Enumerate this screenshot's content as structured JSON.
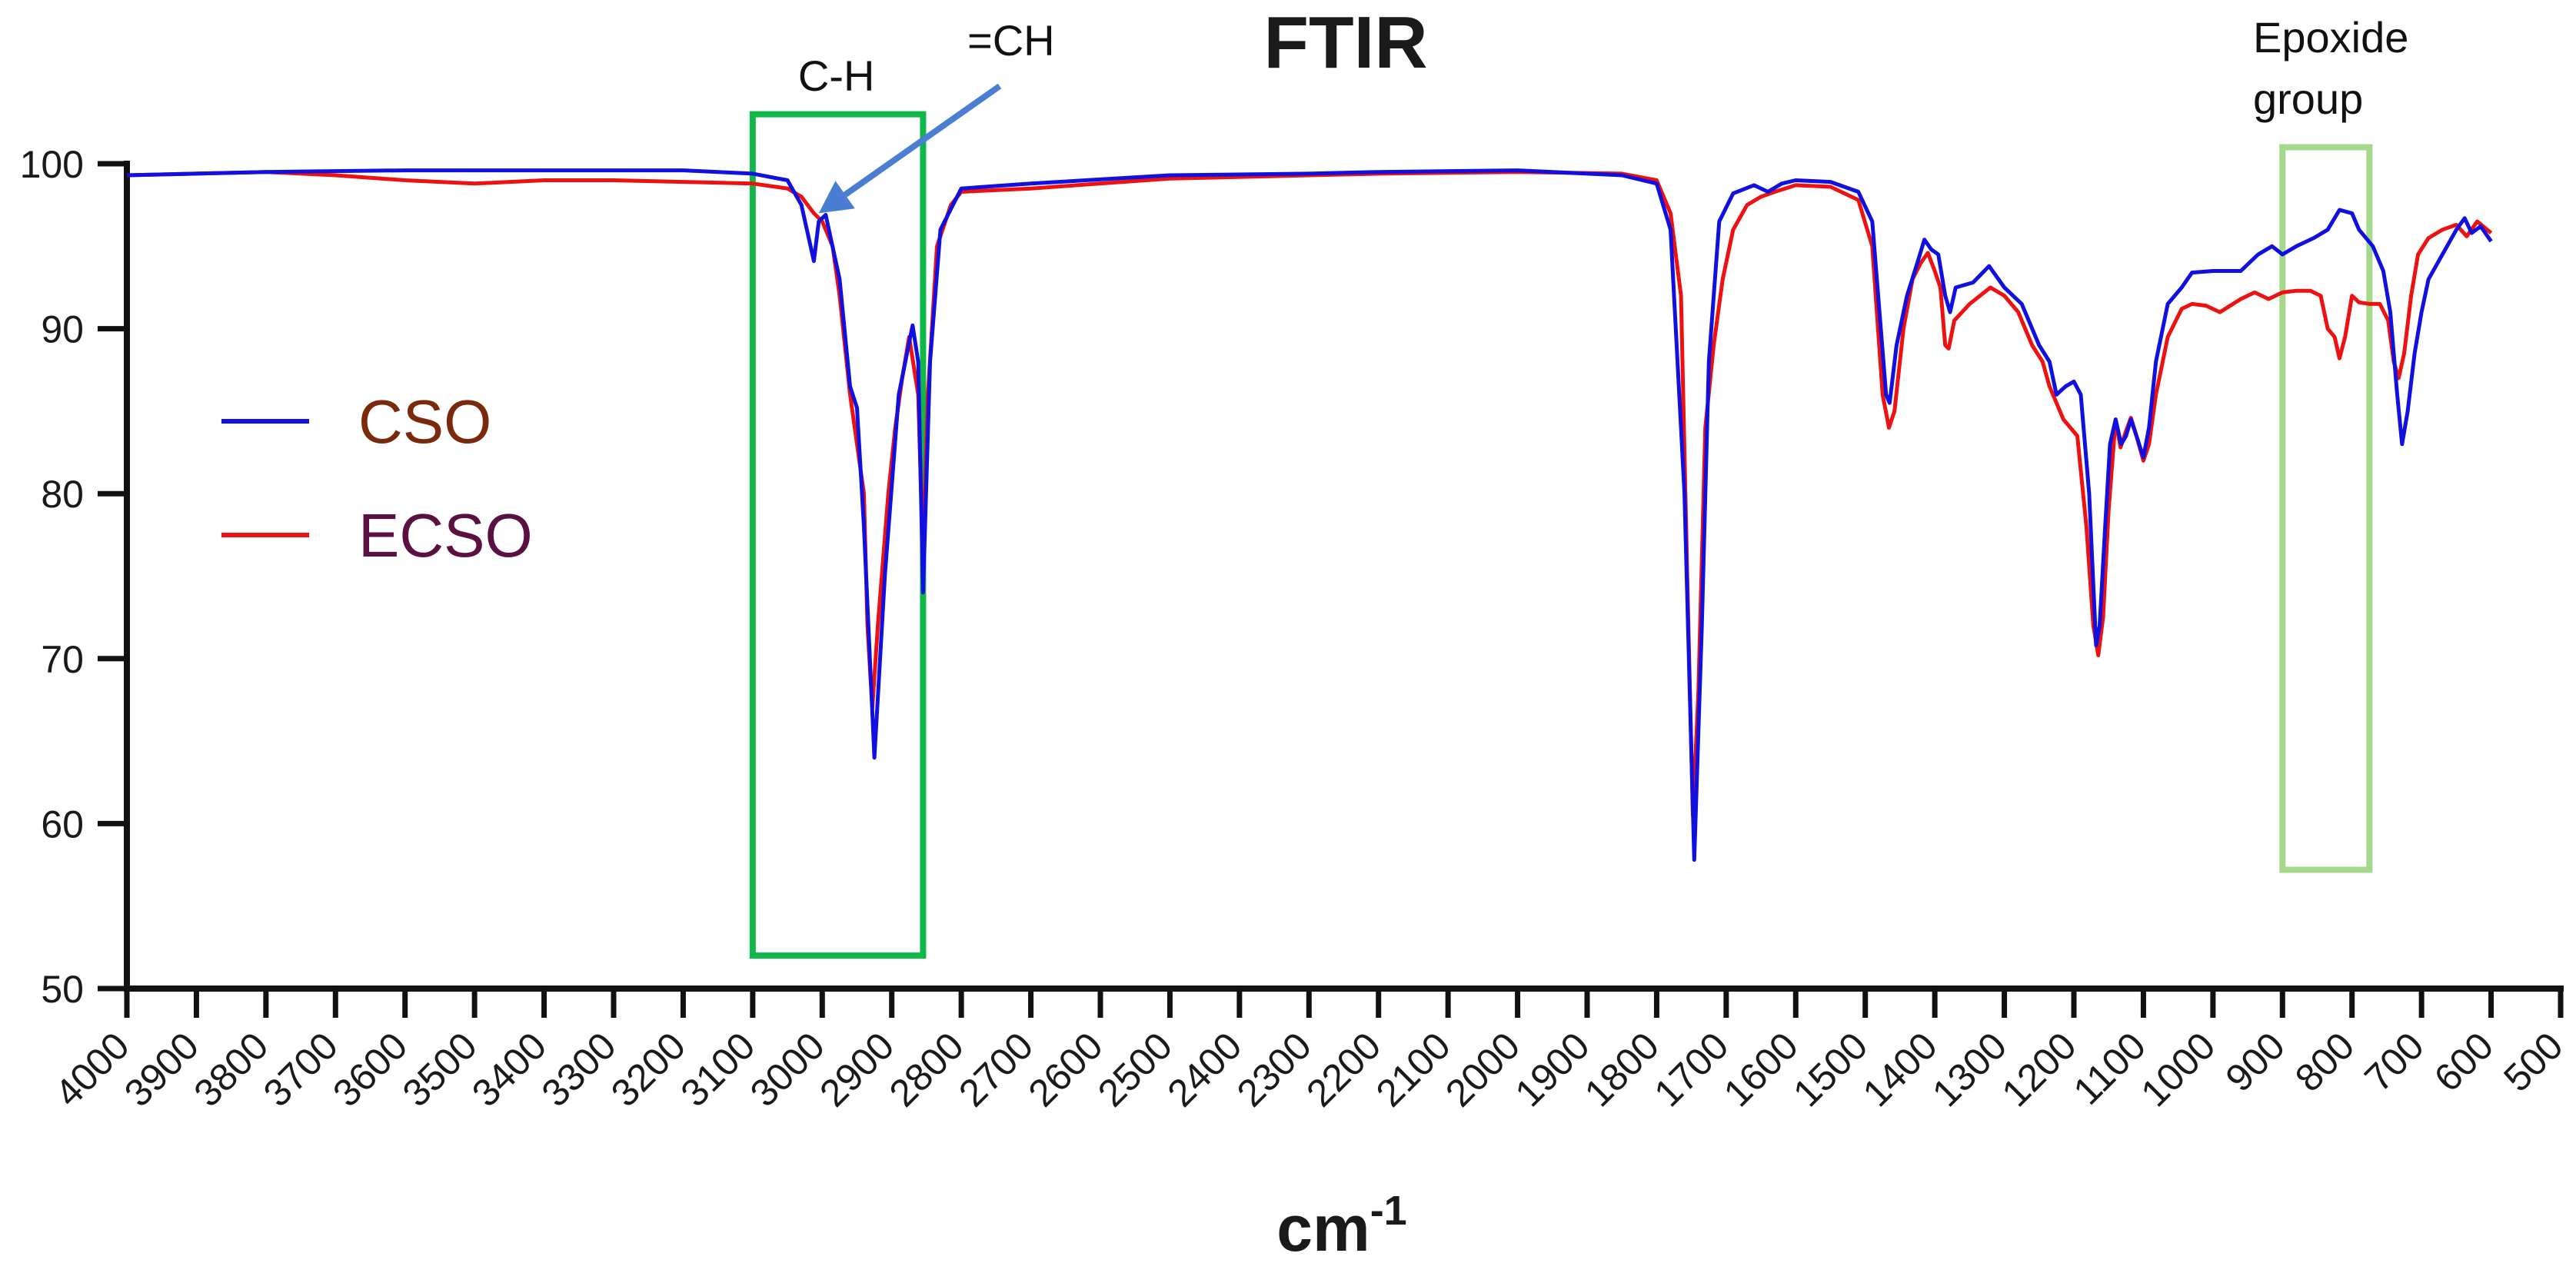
{
  "chart_data": {
    "type": "line",
    "title": "FTIR",
    "xlabel": "cm",
    "xlabel_superscript": "-1",
    "ylabel": "",
    "xlim": [
      4000,
      500
    ],
    "ylim": [
      50,
      100
    ],
    "x_reversed": true,
    "x_ticks": [
      4000,
      3900,
      3800,
      3700,
      3600,
      3500,
      3400,
      3300,
      3200,
      3100,
      3000,
      2900,
      2800,
      2700,
      2600,
      2500,
      2400,
      2300,
      2200,
      2100,
      2000,
      1900,
      1800,
      1700,
      1600,
      1500,
      1400,
      1300,
      1200,
      1100,
      1000,
      900,
      800,
      700,
      600,
      500
    ],
    "y_ticks": [
      50,
      60,
      70,
      80,
      90,
      100
    ],
    "legend_position": "left",
    "series": [
      {
        "name": "CSO",
        "color": "#1010e0",
        "label_color": "#7a2a0a",
        "points": [
          [
            4000,
            99.3
          ],
          [
            3800,
            99.5
          ],
          [
            3600,
            99.6
          ],
          [
            3400,
            99.6
          ],
          [
            3200,
            99.6
          ],
          [
            3100,
            99.4
          ],
          [
            3050,
            99.0
          ],
          [
            3030,
            97.5
          ],
          [
            3012,
            94.1
          ],
          [
            3005,
            96.5
          ],
          [
            2995,
            96.9
          ],
          [
            2975,
            93.0
          ],
          [
            2960,
            86.5
          ],
          [
            2950,
            85.2
          ],
          [
            2940,
            78.0
          ],
          [
            2925,
            64.0
          ],
          [
            2910,
            75.0
          ],
          [
            2890,
            86.0
          ],
          [
            2870,
            90.2
          ],
          [
            2862,
            88.0
          ],
          [
            2855,
            74.0
          ],
          [
            2845,
            88.0
          ],
          [
            2830,
            96.0
          ],
          [
            2800,
            98.5
          ],
          [
            2700,
            98.8
          ],
          [
            2500,
            99.3
          ],
          [
            2300,
            99.4
          ],
          [
            2200,
            99.5
          ],
          [
            2000,
            99.6
          ],
          [
            1850,
            99.3
          ],
          [
            1800,
            98.8
          ],
          [
            1780,
            96.0
          ],
          [
            1760,
            80.0
          ],
          [
            1746,
            57.8
          ],
          [
            1735,
            72.0
          ],
          [
            1725,
            88.0
          ],
          [
            1710,
            96.5
          ],
          [
            1690,
            98.2
          ],
          [
            1660,
            98.7
          ],
          [
            1640,
            98.3
          ],
          [
            1620,
            98.8
          ],
          [
            1600,
            99.0
          ],
          [
            1550,
            98.9
          ],
          [
            1510,
            98.3
          ],
          [
            1490,
            96.5
          ],
          [
            1470,
            86.0
          ],
          [
            1465,
            85.5
          ],
          [
            1455,
            89.0
          ],
          [
            1440,
            92.0
          ],
          [
            1425,
            94.0
          ],
          [
            1415,
            95.4
          ],
          [
            1405,
            94.8
          ],
          [
            1395,
            94.5
          ],
          [
            1385,
            92.0
          ],
          [
            1378,
            91.0
          ],
          [
            1370,
            92.5
          ],
          [
            1345,
            92.8
          ],
          [
            1322,
            93.8
          ],
          [
            1300,
            92.5
          ],
          [
            1275,
            91.5
          ],
          [
            1250,
            89.0
          ],
          [
            1235,
            88.0
          ],
          [
            1225,
            86.0
          ],
          [
            1212,
            86.5
          ],
          [
            1200,
            86.8
          ],
          [
            1190,
            86.0
          ],
          [
            1178,
            80.0
          ],
          [
            1168,
            70.8
          ],
          [
            1163,
            72.0
          ],
          [
            1155,
            78.0
          ],
          [
            1148,
            83.0
          ],
          [
            1140,
            84.5
          ],
          [
            1132,
            83.0
          ],
          [
            1125,
            83.5
          ],
          [
            1118,
            84.5
          ],
          [
            1110,
            83.5
          ],
          [
            1100,
            82.2
          ],
          [
            1092,
            84.0
          ],
          [
            1082,
            88.0
          ],
          [
            1065,
            91.5
          ],
          [
            1045,
            92.5
          ],
          [
            1030,
            93.4
          ],
          [
            1000,
            93.5
          ],
          [
            960,
            93.5
          ],
          [
            935,
            94.5
          ],
          [
            915,
            95.0
          ],
          [
            900,
            94.5
          ],
          [
            880,
            95.0
          ],
          [
            855,
            95.5
          ],
          [
            835,
            96.0
          ],
          [
            818,
            97.2
          ],
          [
            800,
            97.0
          ],
          [
            790,
            96.0
          ],
          [
            770,
            95.0
          ],
          [
            755,
            93.5
          ],
          [
            745,
            91.0
          ],
          [
            735,
            86.0
          ],
          [
            728,
            83.0
          ],
          [
            720,
            85.0
          ],
          [
            710,
            88.5
          ],
          [
            700,
            91.0
          ],
          [
            690,
            93.0
          ],
          [
            670,
            94.5
          ],
          [
            650,
            96.0
          ],
          [
            638,
            96.7
          ],
          [
            628,
            95.8
          ],
          [
            615,
            96.2
          ],
          [
            600,
            95.3
          ]
        ]
      },
      {
        "name": "ECSO",
        "color": "#ee1111",
        "label_color": "#5a1040",
        "points": [
          [
            4000,
            99.3
          ],
          [
            3800,
            99.5
          ],
          [
            3700,
            99.3
          ],
          [
            3600,
            99.0
          ],
          [
            3500,
            98.8
          ],
          [
            3400,
            99.0
          ],
          [
            3300,
            99.0
          ],
          [
            3200,
            98.9
          ],
          [
            3100,
            98.8
          ],
          [
            3050,
            98.5
          ],
          [
            3030,
            98.0
          ],
          [
            3012,
            97.0
          ],
          [
            3000,
            96.5
          ],
          [
            2985,
            95.0
          ],
          [
            2975,
            92.0
          ],
          [
            2960,
            86.0
          ],
          [
            2950,
            83.0
          ],
          [
            2940,
            80.0
          ],
          [
            2935,
            72.0
          ],
          [
            2928,
            67.0
          ],
          [
            2920,
            72.0
          ],
          [
            2905,
            80.0
          ],
          [
            2895,
            84.0
          ],
          [
            2885,
            87.0
          ],
          [
            2875,
            89.5
          ],
          [
            2862,
            86.0
          ],
          [
            2855,
            76.0
          ],
          [
            2848,
            86.0
          ],
          [
            2835,
            95.0
          ],
          [
            2815,
            97.5
          ],
          [
            2800,
            98.3
          ],
          [
            2700,
            98.5
          ],
          [
            2500,
            99.1
          ],
          [
            2300,
            99.3
          ],
          [
            2200,
            99.4
          ],
          [
            2000,
            99.5
          ],
          [
            1850,
            99.4
          ],
          [
            1800,
            99.0
          ],
          [
            1780,
            97.0
          ],
          [
            1765,
            92.0
          ],
          [
            1756,
            75.0
          ],
          [
            1748,
            60.5
          ],
          [
            1740,
            68.0
          ],
          [
            1730,
            84.0
          ],
          [
            1718,
            89.0
          ],
          [
            1705,
            93.0
          ],
          [
            1690,
            96.0
          ],
          [
            1670,
            97.5
          ],
          [
            1650,
            98.0
          ],
          [
            1630,
            98.3
          ],
          [
            1600,
            98.7
          ],
          [
            1550,
            98.6
          ],
          [
            1510,
            97.8
          ],
          [
            1490,
            95.0
          ],
          [
            1475,
            86.0
          ],
          [
            1466,
            84.0
          ],
          [
            1458,
            85.0
          ],
          [
            1445,
            90.0
          ],
          [
            1432,
            93.0
          ],
          [
            1420,
            94.0
          ],
          [
            1410,
            94.6
          ],
          [
            1400,
            93.5
          ],
          [
            1392,
            92.5
          ],
          [
            1385,
            89.0
          ],
          [
            1380,
            88.8
          ],
          [
            1372,
            90.5
          ],
          [
            1350,
            91.5
          ],
          [
            1320,
            92.5
          ],
          [
            1300,
            92.0
          ],
          [
            1280,
            91.0
          ],
          [
            1260,
            89.0
          ],
          [
            1245,
            88.0
          ],
          [
            1235,
            86.5
          ],
          [
            1225,
            85.5
          ],
          [
            1215,
            84.5
          ],
          [
            1205,
            84.0
          ],
          [
            1195,
            83.5
          ],
          [
            1182,
            78.0
          ],
          [
            1172,
            72.0
          ],
          [
            1165,
            70.2
          ],
          [
            1158,
            72.5
          ],
          [
            1150,
            79.0
          ],
          [
            1140,
            84.5
          ],
          [
            1133,
            82.8
          ],
          [
            1125,
            83.8
          ],
          [
            1118,
            84.6
          ],
          [
            1110,
            83.5
          ],
          [
            1100,
            82.0
          ],
          [
            1092,
            83.0
          ],
          [
            1082,
            86.0
          ],
          [
            1065,
            89.5
          ],
          [
            1045,
            91.2
          ],
          [
            1030,
            91.5
          ],
          [
            1010,
            91.4
          ],
          [
            990,
            91.0
          ],
          [
            960,
            91.8
          ],
          [
            940,
            92.2
          ],
          [
            920,
            91.8
          ],
          [
            900,
            92.2
          ],
          [
            880,
            92.3
          ],
          [
            860,
            92.3
          ],
          [
            845,
            92.0
          ],
          [
            835,
            90.0
          ],
          [
            825,
            89.5
          ],
          [
            818,
            88.2
          ],
          [
            810,
            89.5
          ],
          [
            800,
            92.0
          ],
          [
            790,
            91.6
          ],
          [
            775,
            91.5
          ],
          [
            760,
            91.5
          ],
          [
            748,
            90.5
          ],
          [
            740,
            88.0
          ],
          [
            733,
            87.0
          ],
          [
            725,
            88.5
          ],
          [
            715,
            92.0
          ],
          [
            705,
            94.5
          ],
          [
            690,
            95.5
          ],
          [
            670,
            96.0
          ],
          [
            650,
            96.3
          ],
          [
            635,
            95.6
          ],
          [
            620,
            96.5
          ],
          [
            600,
            95.8
          ]
        ]
      }
    ],
    "annotations": {
      "ch_label": "C-H",
      "ch_range": [
        3100,
        2855
      ],
      "ch_y_range": [
        52,
        103
      ],
      "ch_box_color": "#10b84a",
      "eqch_label": "=CH",
      "eqch_target": [
        3005,
        97.0
      ],
      "eqch_arrow_color": "#4a7ed2",
      "epoxide_label_line1": "Epoxide",
      "epoxide_label_line2": "group",
      "epoxide_range": [
        900,
        775
      ],
      "epoxide_y_range": [
        57.2,
        101
      ],
      "epoxide_box_color": "#a4d88a"
    }
  }
}
